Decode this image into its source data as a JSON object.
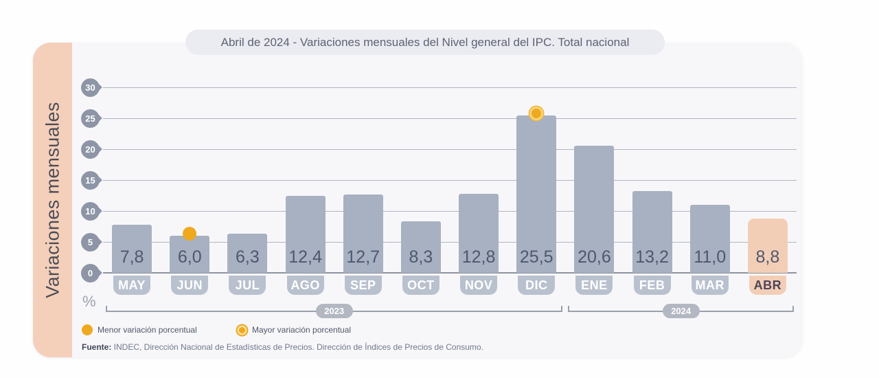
{
  "title": "Abril de 2024 - Variaciones mensuales del Nivel general del IPC. Total nacional",
  "chart_data": {
    "type": "bar",
    "title": "Abril de 2024 - Variaciones mensuales del Nivel general del IPC. Total nacional",
    "ylabel": "Variaciones mensuales",
    "unit": "%",
    "ylim": [
      0,
      30
    ],
    "yticks": [
      0,
      5,
      10,
      15,
      20,
      25,
      30
    ],
    "grid": true,
    "categories": [
      "MAY",
      "JUN",
      "JUL",
      "AGO",
      "SEP",
      "OCT",
      "NOV",
      "DIC",
      "ENE",
      "FEB",
      "MAR",
      "ABR"
    ],
    "values": [
      7.8,
      6.0,
      6.3,
      12.4,
      12.7,
      8.3,
      12.8,
      25.5,
      20.6,
      13.2,
      11.0,
      8.8
    ],
    "value_labels": [
      "7,8",
      "6,0",
      "6,3",
      "12,4",
      "12,7",
      "8,3",
      "12,8",
      "25,5",
      "20,6",
      "13,2",
      "11,0",
      "8,8"
    ],
    "highlight_category": "ABR",
    "min_marker": {
      "category": "JUN",
      "meaning": "Menor variación porcentual"
    },
    "max_marker": {
      "category": "DIC",
      "meaning": "Mayor variación porcentual"
    },
    "year_groups": [
      {
        "label": "2023",
        "from": "MAY",
        "to": "DIC"
      },
      {
        "label": "2024",
        "from": "ENE",
        "to": "ABR"
      }
    ],
    "colors": {
      "bar": "#a7b1c1",
      "highlight_bar": "#f3ceb6",
      "marker_yellow": "#efa91f",
      "month_pill": "#b9c1ce",
      "tick_circle": "#8d95a6"
    }
  },
  "legend": [
    {
      "label": "Menor variación porcentual",
      "marker": "solid-dot"
    },
    {
      "label": "Mayor variación porcentual",
      "marker": "ringed-dot"
    }
  ],
  "source": {
    "prefix": "Fuente:",
    "text": " INDEC, Dirección Nacional de Estadísticas de Precios. Dirección de Índices de Precios de Consumo."
  }
}
